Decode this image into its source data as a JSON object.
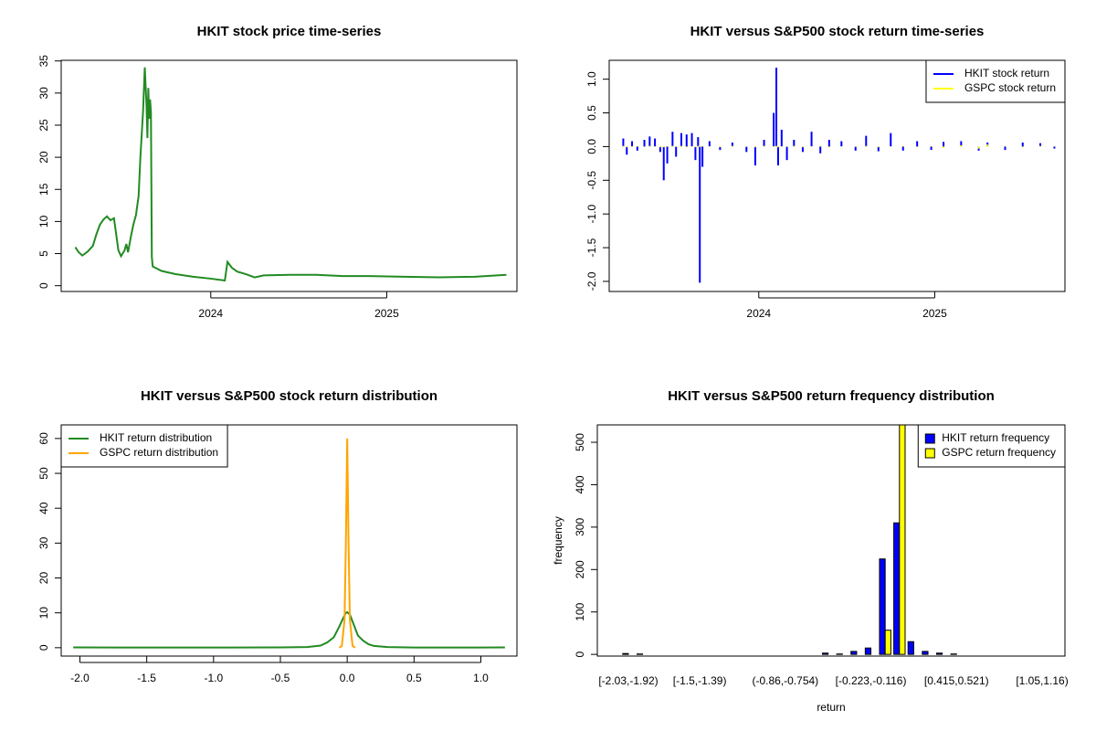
{
  "chart_data": [
    {
      "type": "line",
      "title": "HKIT stock price time-series",
      "color": "#228b22",
      "x": [
        2023.23,
        2023.25,
        2023.27,
        2023.3,
        2023.33,
        2023.35,
        2023.37,
        2023.39,
        2023.41,
        2023.43,
        2023.45,
        2023.46,
        2023.475,
        2023.49,
        2023.51,
        2023.52,
        2023.53,
        2023.545,
        2023.56,
        2023.575,
        2023.59,
        2023.6,
        2023.615,
        2023.625,
        2023.635,
        2023.64,
        2023.645,
        2023.65,
        2023.655,
        2023.66,
        2023.665,
        2023.67,
        2023.72,
        2023.8,
        2023.9,
        2024.0,
        2024.08,
        2024.095,
        2024.12,
        2024.15,
        2024.2,
        2024.25,
        2024.3,
        2024.45,
        2024.6,
        2024.75,
        2024.9,
        2025.1,
        2025.3,
        2025.5,
        2025.68
      ],
      "values": [
        6,
        5.2,
        4.7,
        5.3,
        6.2,
        8,
        9.5,
        10.3,
        10.8,
        10.2,
        10.5,
        8.5,
        5.5,
        4.6,
        5.5,
        6.5,
        5.2,
        7.5,
        9.5,
        11,
        14,
        20,
        27,
        34,
        28,
        23,
        30.8,
        26,
        29,
        27,
        4.5,
        3,
        2.3,
        1.8,
        1.4,
        1.1,
        0.8,
        3.7,
        2.8,
        2.2,
        1.8,
        1.3,
        1.6,
        1.7,
        1.7,
        1.5,
        1.5,
        1.4,
        1.3,
        1.4,
        1.7
      ],
      "xlim": [
        2023.15,
        2025.74
      ],
      "xticks": [
        2024,
        2025
      ],
      "ylim": [
        -0.9,
        35.1
      ],
      "yticks": [
        0,
        5,
        10,
        15,
        20,
        25,
        30,
        35
      ]
    },
    {
      "type": "spike",
      "title": "HKIT versus S&P500 stock return time-series",
      "x": [
        2023.23,
        2023.25,
        2023.28,
        2023.31,
        2023.35,
        2023.38,
        2023.41,
        2023.44,
        2023.46,
        2023.48,
        2023.51,
        2023.53,
        2023.56,
        2023.59,
        2023.62,
        2023.64,
        2023.655,
        2023.665,
        2023.68,
        2023.72,
        2023.78,
        2023.85,
        2023.93,
        2023.98,
        2024.03,
        2024.085,
        2024.1,
        2024.11,
        2024.13,
        2024.16,
        2024.2,
        2024.25,
        2024.3,
        2024.35,
        2024.4,
        2024.47,
        2024.55,
        2024.61,
        2024.68,
        2024.75,
        2024.82,
        2024.9,
        2024.98,
        2025.05,
        2025.15,
        2025.25,
        2025.3,
        2025.4,
        2025.5,
        2025.6,
        2025.68
      ],
      "series": [
        {
          "name": "HKIT stock return",
          "color": "#0000ff",
          "values": [
            0.12,
            -0.12,
            0.08,
            -0.06,
            0.1,
            0.15,
            0.12,
            -0.08,
            -0.5,
            -0.25,
            0.22,
            -0.15,
            0.2,
            0.18,
            0.2,
            -0.2,
            0.14,
            -2.02,
            -0.3,
            0.08,
            -0.05,
            0.06,
            -0.08,
            -0.28,
            0.1,
            0.5,
            1.17,
            -0.28,
            0.25,
            -0.2,
            0.1,
            -0.08,
            0.22,
            -0.1,
            0.1,
            0.08,
            -0.06,
            0.16,
            -0.07,
            0.2,
            -0.06,
            0.08,
            -0.05,
            0.07,
            0.08,
            -0.06,
            0.06,
            -0.05,
            0.06,
            0.05,
            -0.03
          ]
        },
        {
          "name": "GSPC stock return",
          "color": "#ffff00",
          "values": [
            0.01,
            -0.01,
            0.005,
            0.01,
            -0.005,
            0.01,
            0.005,
            -0.01,
            -0.01,
            0.005,
            0.01,
            -0.005,
            0.01,
            -0.01,
            0.005,
            -0.01,
            0.01,
            -0.005,
            0.01,
            0.005,
            -0.01,
            0.01,
            -0.005,
            -0.01,
            0.01,
            0.005,
            0.01,
            -0.01,
            0.005,
            -0.005,
            0.01,
            -0.01,
            0.005,
            0.01,
            -0.01,
            0.005,
            -0.005,
            0.01,
            -0.01,
            0.005,
            0.01,
            -0.01,
            0.005,
            -0.02,
            0.02,
            -0.03,
            0.03,
            0.01,
            -0.01,
            0.01,
            0.005
          ]
        }
      ],
      "xlim": [
        2023.15,
        2025.74
      ],
      "xticks": [
        2024,
        2025
      ],
      "ylim": [
        -2.15,
        1.28
      ],
      "yticks": [
        {
          "value": 1,
          "label": "1.0"
        },
        0.5,
        {
          "value": 0,
          "label": "0.0"
        },
        -0.5,
        {
          "value": -1,
          "label": "-1.0"
        },
        -1.5,
        {
          "value": -2,
          "label": "-2.0"
        }
      ],
      "legend": "topright"
    },
    {
      "type": "line",
      "title": "HKIT versus S&P500 stock return distribution",
      "series": [
        {
          "name": "HKIT return distribution",
          "color": "#228b22",
          "x": [
            -2.05,
            -1.5,
            -1.0,
            -0.5,
            -0.3,
            -0.2,
            -0.15,
            -0.1,
            -0.06,
            -0.03,
            -0.01,
            0,
            0.02,
            0.05,
            0.08,
            0.12,
            0.16,
            0.2,
            0.3,
            0.5,
            1.0,
            1.18
          ],
          "values": [
            0.1,
            0.05,
            0.05,
            0.1,
            0.2,
            0.6,
            1.5,
            3,
            6,
            8.5,
            10,
            10.2,
            9.5,
            6.5,
            3.5,
            2,
            1,
            0.5,
            0.2,
            0.05,
            0.05,
            0.1
          ]
        },
        {
          "name": "GSPC return distribution",
          "color": "#ffa500",
          "x": [
            -0.06,
            -0.04,
            -0.02,
            -0.01,
            0,
            0.01,
            0.02,
            0.04,
            0.06
          ],
          "values": [
            0,
            0.5,
            8,
            30,
            60,
            30,
            8,
            0.5,
            0
          ]
        }
      ],
      "xlim": [
        -2.14,
        1.27
      ],
      "xticks": [
        {
          "value": -2,
          "label": "-2.0"
        },
        -1.5,
        {
          "value": -1,
          "label": "-1.0"
        },
        -0.5,
        {
          "value": 0,
          "label": "0.0"
        },
        0.5,
        {
          "value": 1,
          "label": "1.0"
        }
      ],
      "ylim": [
        -2.4,
        63.9
      ],
      "yticks": [
        0,
        10,
        20,
        30,
        40,
        50,
        60
      ],
      "legend": "topleft"
    },
    {
      "type": "bar",
      "title": "HKIT versus S&P500 return frequency distribution",
      "categories": [
        "[-2.03,-1.92)",
        null,
        null,
        null,
        null,
        "[-1.5,-1.39)",
        null,
        null,
        null,
        null,
        null,
        "(-0.86,-0.754)",
        null,
        null,
        null,
        null,
        null,
        "[-0.223,-0.116)",
        null,
        null,
        null,
        null,
        null,
        "[0.415,0.521)",
        null,
        null,
        null,
        null,
        null,
        "[1.05,1.16)"
      ],
      "series": [
        {
          "name": "HKIT return frequency",
          "color": "#0000ff",
          "values": [
            2,
            1,
            0,
            0,
            0,
            0,
            0,
            0,
            0,
            0,
            0,
            0,
            0,
            0,
            3,
            1,
            7,
            15,
            225,
            310,
            30,
            7,
            3,
            1,
            0,
            0,
            0,
            0,
            0,
            0
          ]
        },
        {
          "name": "GSPC return frequency",
          "color": "#ffff00",
          "values": [
            0,
            0,
            0,
            0,
            0,
            0,
            0,
            0,
            0,
            0,
            0,
            0,
            0,
            0,
            0,
            0,
            0,
            0,
            57,
            560,
            0,
            0,
            0,
            0,
            0,
            0,
            0,
            0,
            0,
            0
          ]
        }
      ],
      "ylim": [
        -4,
        541
      ],
      "yticks": [
        0,
        100,
        200,
        300,
        400,
        500
      ],
      "xlabel": "return",
      "ylabel": "frequency",
      "legend": "topright"
    }
  ]
}
